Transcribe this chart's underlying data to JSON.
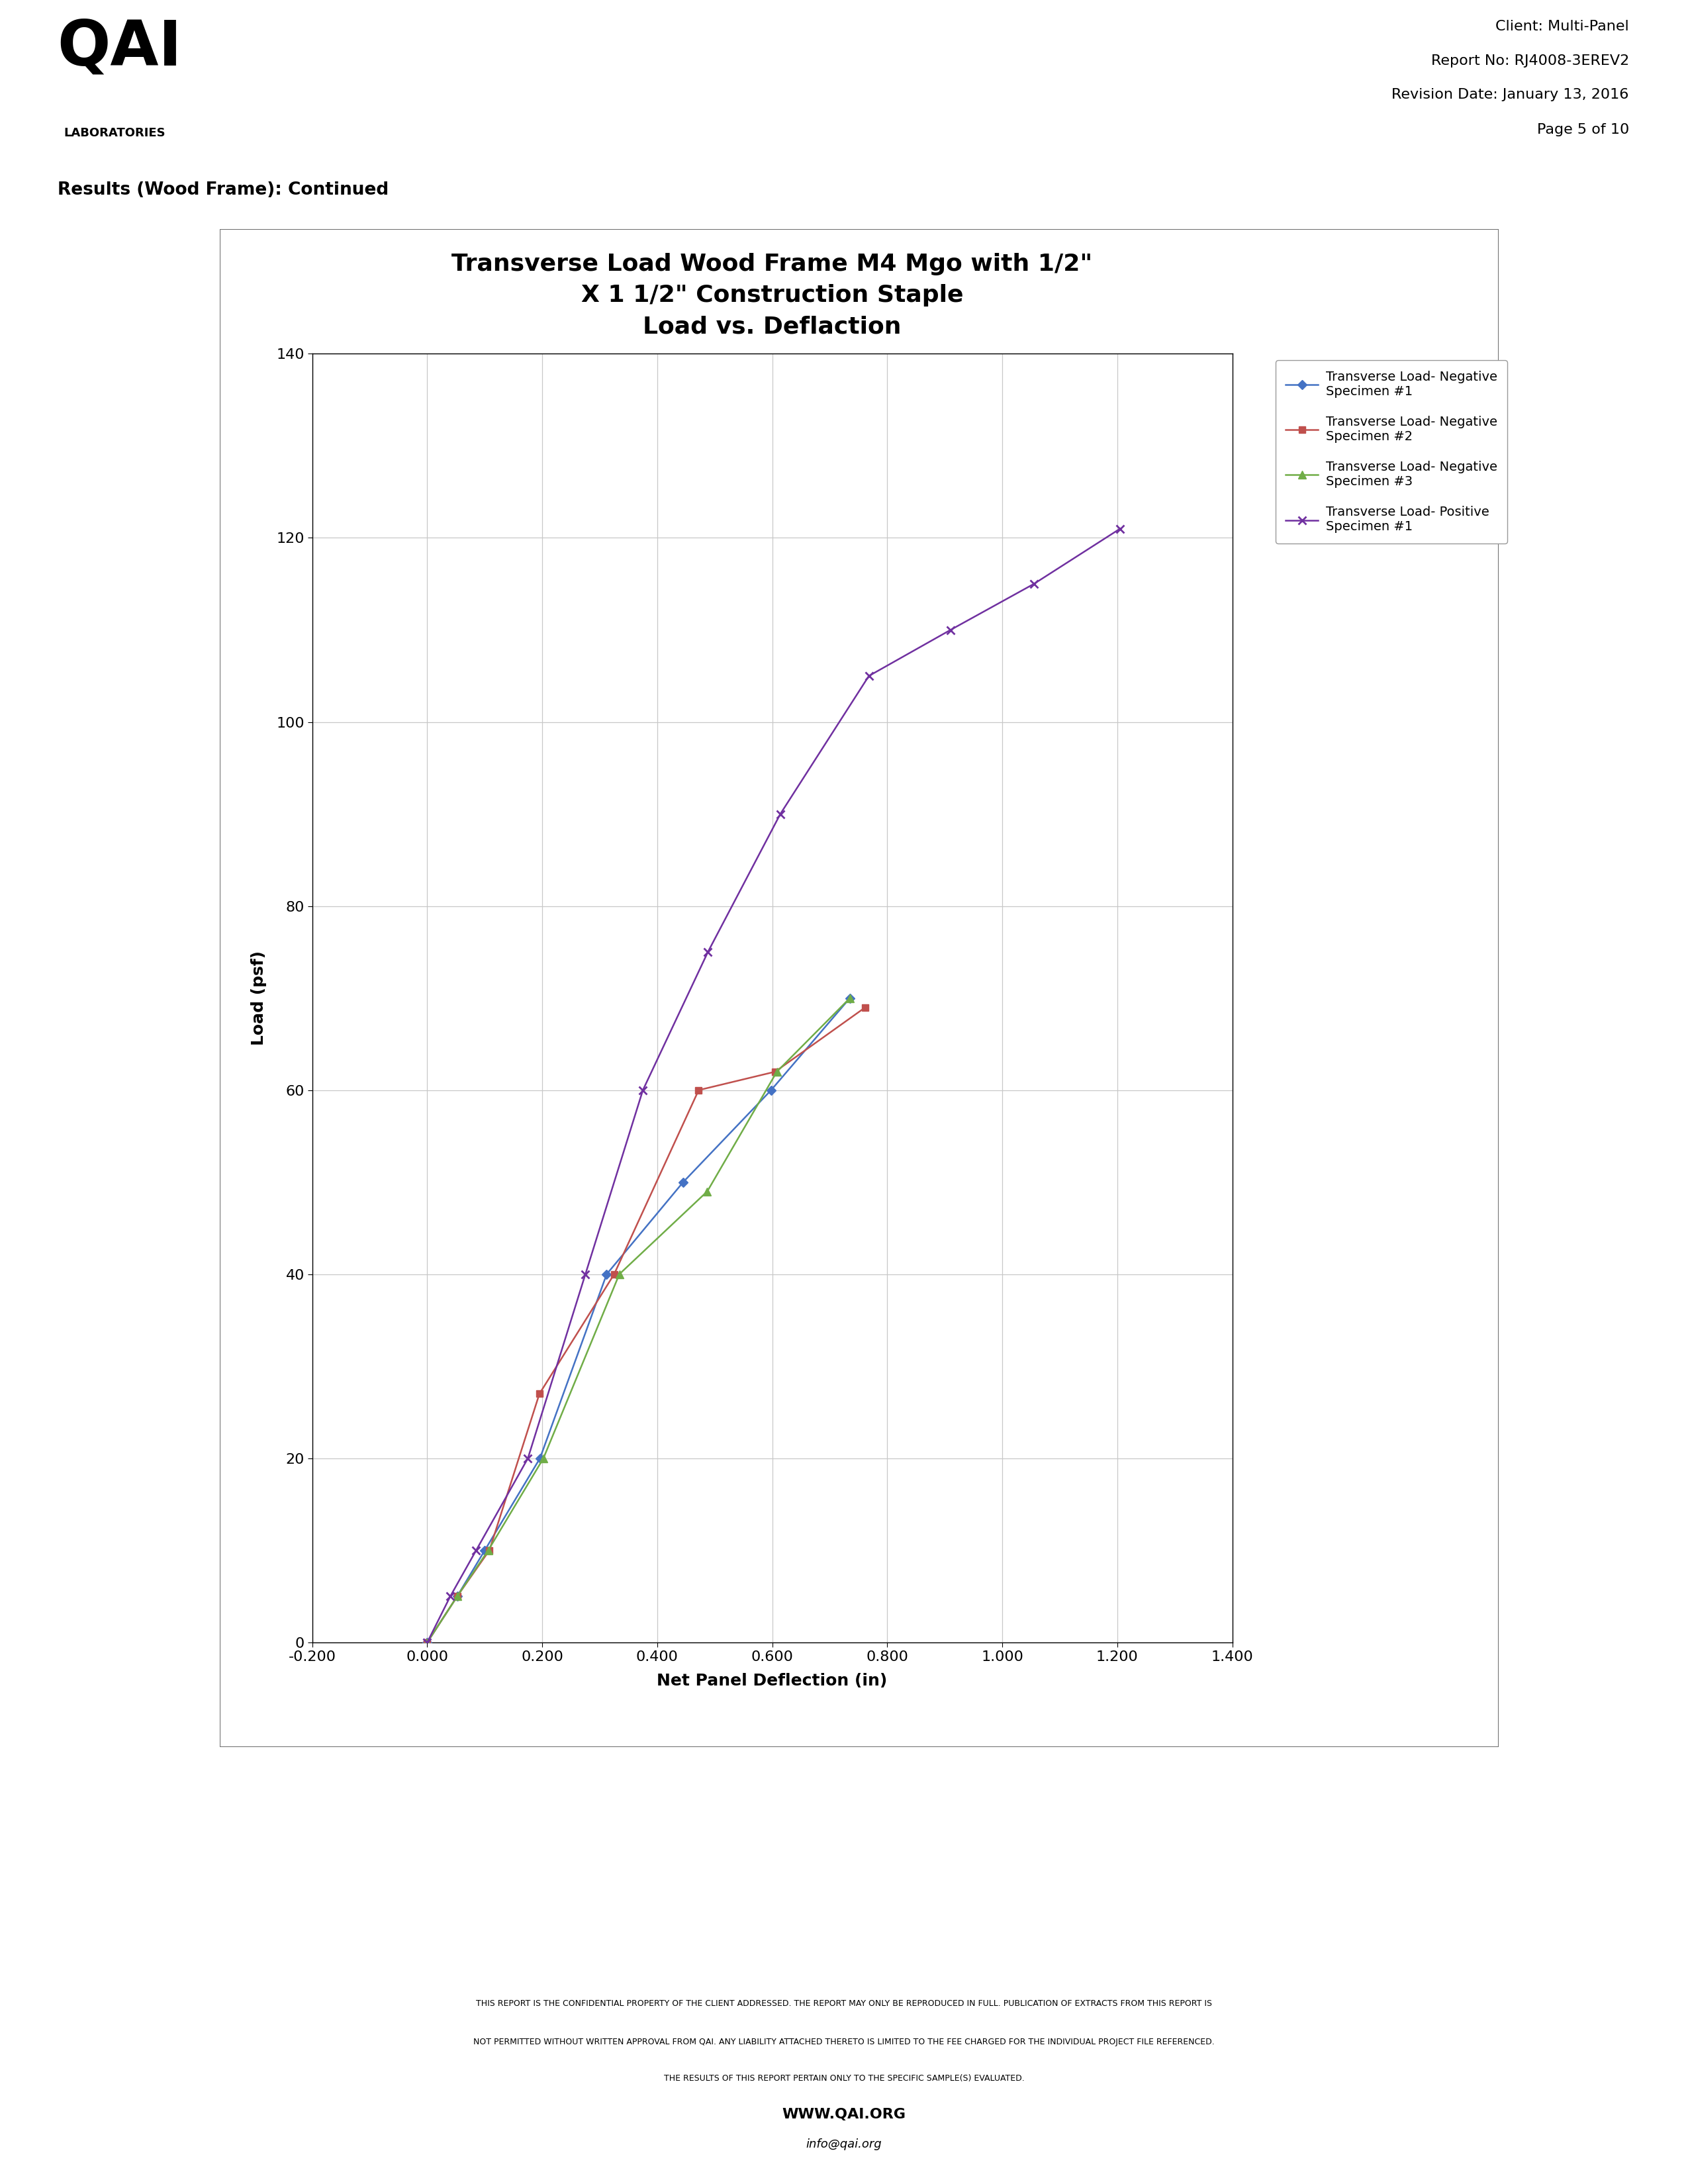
{
  "title_line1": "Transverse Load Wood Frame M4 Mgo with 1/2\"",
  "title_line2": "X 1 1/2\" Construction Staple",
  "title_line3": "Load vs. Deflaction",
  "xlabel": "Net Panel Deflection (in)",
  "ylabel": "Load (psf)",
  "section_heading": "Results (Wood Frame): Continued",
  "client_info": [
    "Client: Multi-Panel",
    "Report No: RJ4008-3EREV2",
    "Revision Date: January 13, 2016",
    "Page 5 of 10"
  ],
  "footer_line1": "THIS REPORT IS THE CONFIDENTIAL PROPERTY OF THE CLIENT ADDRESSED. THE REPORT MAY ONLY BE REPRODUCED IN FULL. PUBLICATION OF EXTRACTS FROM THIS REPORT IS",
  "footer_line2": "NOT PERMITTED WITHOUT WRITTEN APPROVAL FROM QAI. ANY LIABILITY ATTACHED THERETO IS LIMITED TO THE FEE CHARGED FOR THE INDIVIDUAL PROJECT FILE REFERENCED.",
  "footer_line3": "THE RESULTS OF THIS REPORT PERTAIN ONLY TO THE SPECIFIC SAMPLE(S) EVALUATED.",
  "footer_url": "WWW.QAI.ORG",
  "footer_email": "info@qai.org",
  "xlim": [
    -0.2,
    1.4
  ],
  "ylim": [
    0,
    140
  ],
  "xtick_vals": [
    -0.2,
    0.0,
    0.2,
    0.4,
    0.6,
    0.8,
    1.0,
    1.2,
    1.4
  ],
  "xtick_labels": [
    "-0.200",
    "0.000",
    "0.200",
    "0.400",
    "0.600",
    "0.800",
    "1.000",
    "1.200",
    "1.400"
  ],
  "ytick_vals": [
    0,
    20,
    40,
    60,
    80,
    100,
    120,
    140
  ],
  "ytick_labels": [
    "0",
    "20",
    "40",
    "60",
    "80",
    "100",
    "120",
    "140"
  ],
  "series": [
    {
      "label_line1": "Transverse Load- Negative",
      "label_line2": "Specimen #1",
      "color": "#4472C4",
      "marker": "D",
      "ms": 7,
      "lw": 1.8,
      "x": [
        0.0,
        0.052,
        0.1,
        0.196,
        0.312,
        0.445,
        0.598,
        0.735
      ],
      "y": [
        0,
        5,
        10,
        20,
        40,
        50,
        60,
        70
      ]
    },
    {
      "label_line1": "Transverse Load- Negative",
      "label_line2": "Specimen #2",
      "color": "#C0504D",
      "marker": "s",
      "ms": 7,
      "lw": 1.8,
      "x": [
        0.0,
        0.052,
        0.108,
        0.195,
        0.325,
        0.472,
        0.605,
        0.762
      ],
      "y": [
        0,
        5,
        10,
        27,
        40,
        60,
        62,
        69
      ]
    },
    {
      "label_line1": "Transverse Load- Negative",
      "label_line2": "Specimen #3",
      "color": "#70AD47",
      "marker": "^",
      "ms": 8,
      "lw": 1.8,
      "x": [
        0.0,
        0.052,
        0.106,
        0.202,
        0.334,
        0.487,
        0.608,
        0.735
      ],
      "y": [
        0,
        5,
        10,
        20,
        40,
        49,
        62,
        70
      ]
    },
    {
      "label_line1": "Transverse Load- Positive",
      "label_line2": "Specimen #1",
      "color": "#7030A0",
      "marker": "x",
      "ms": 9,
      "lw": 1.8,
      "x": [
        0.0,
        0.04,
        0.085,
        0.175,
        0.275,
        0.375,
        0.488,
        0.614,
        0.768,
        0.91,
        1.055,
        1.205
      ],
      "y": [
        0,
        5,
        10,
        20,
        40,
        60,
        75,
        90,
        105,
        110,
        115,
        121
      ]
    }
  ]
}
